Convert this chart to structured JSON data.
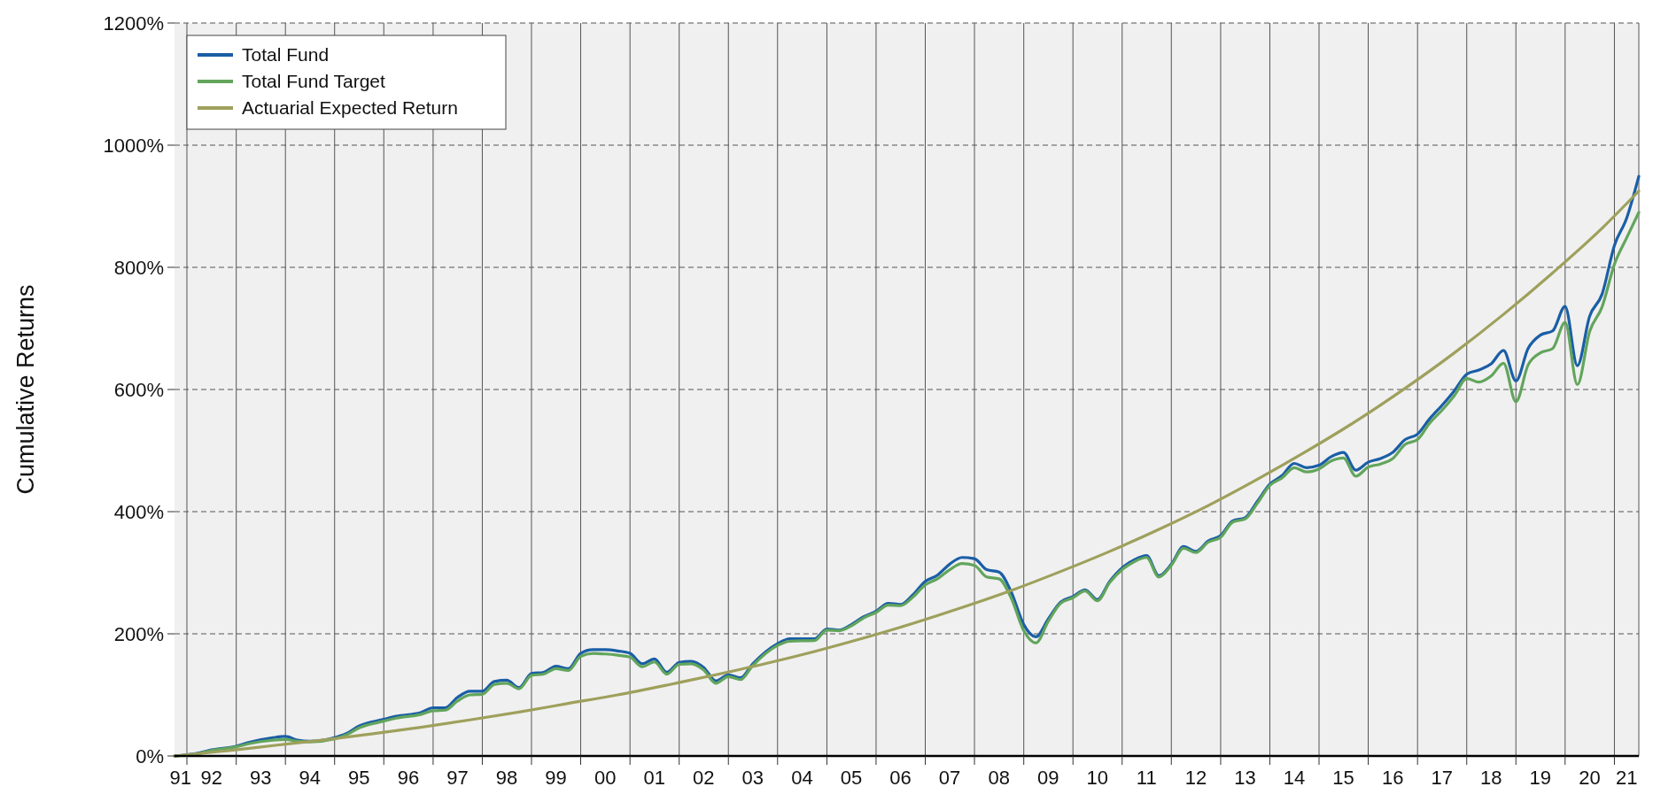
{
  "chart_data": {
    "type": "line",
    "ylabel": "Cumulative Returns",
    "xlim": [
      "1991-10-01",
      "2021-07-01"
    ],
    "xticks": [
      {
        "value": "1992-01-01",
        "label": null
      },
      {
        "value": "1993-01-01",
        "label": null
      },
      {
        "value": "1994-01-01",
        "label": null
      },
      {
        "value": "1995-01-01",
        "label": null
      },
      {
        "value": "1996-01-01",
        "label": null
      },
      {
        "value": "1997-01-01",
        "label": null
      },
      {
        "value": "1998-01-01",
        "label": null
      },
      {
        "value": "1999-01-01",
        "label": null
      },
      {
        "value": "2000-01-01",
        "label": null
      },
      {
        "value": "2001-01-01",
        "label": null
      },
      {
        "value": "2002-01-01",
        "label": null
      },
      {
        "value": "2003-01-01",
        "label": null
      },
      {
        "value": "2004-01-01",
        "label": null
      },
      {
        "value": "2005-01-01",
        "label": null
      },
      {
        "value": "2006-01-01",
        "label": null
      },
      {
        "value": "2007-01-01",
        "label": null
      },
      {
        "value": "2008-01-01",
        "label": null
      },
      {
        "value": "2009-01-01",
        "label": null
      },
      {
        "value": "2010-01-01",
        "label": null
      },
      {
        "value": "2011-01-01",
        "label": null
      },
      {
        "value": "2012-01-01",
        "label": null
      },
      {
        "value": "2013-01-01",
        "label": null
      },
      {
        "value": "2014-01-01",
        "label": null
      },
      {
        "value": "2015-01-01",
        "label": null
      },
      {
        "value": "2016-01-01",
        "label": null
      },
      {
        "value": "2017-01-01",
        "label": null
      },
      {
        "value": "2018-01-01",
        "label": null
      },
      {
        "value": "2019-01-01",
        "label": null
      },
      {
        "value": "2020-01-01",
        "label": null
      },
      {
        "value": "2021-01-01",
        "label": null
      },
      {
        "value": "1991-11-15",
        "label": "91"
      },
      {
        "value": "1992-07-01",
        "label": "92"
      },
      {
        "value": "1993-07-01",
        "label": "93"
      },
      {
        "value": "1994-07-01",
        "label": "94"
      },
      {
        "value": "1995-07-01",
        "label": "95"
      },
      {
        "value": "1996-07-01",
        "label": "96"
      },
      {
        "value": "1997-07-01",
        "label": "97"
      },
      {
        "value": "1998-07-01",
        "label": "98"
      },
      {
        "value": "1999-07-01",
        "label": "99"
      },
      {
        "value": "2000-07-01",
        "label": "00"
      },
      {
        "value": "2001-07-01",
        "label": "01"
      },
      {
        "value": "2002-07-01",
        "label": "02"
      },
      {
        "value": "2003-07-01",
        "label": "03"
      },
      {
        "value": "2004-07-01",
        "label": "04"
      },
      {
        "value": "2005-07-01",
        "label": "05"
      },
      {
        "value": "2006-07-01",
        "label": "06"
      },
      {
        "value": "2007-07-01",
        "label": "07"
      },
      {
        "value": "2008-07-01",
        "label": "08"
      },
      {
        "value": "2009-07-01",
        "label": "09"
      },
      {
        "value": "2010-07-01",
        "label": "10"
      },
      {
        "value": "2011-07-01",
        "label": "11"
      },
      {
        "value": "2012-07-01",
        "label": "12"
      },
      {
        "value": "2013-07-01",
        "label": "13"
      },
      {
        "value": "2014-07-01",
        "label": "14"
      },
      {
        "value": "2015-07-01",
        "label": "15"
      },
      {
        "value": "2016-07-01",
        "label": "16"
      },
      {
        "value": "2017-07-01",
        "label": "17"
      },
      {
        "value": "2018-07-01",
        "label": "18"
      },
      {
        "value": "2019-07-01",
        "label": "19"
      },
      {
        "value": "2020-07-01",
        "label": "20"
      },
      {
        "value": "2021-04-01",
        "label": "21"
      }
    ],
    "ylim": [
      0,
      1200
    ],
    "yticks": [
      {
        "value": 0,
        "label": "0%"
      },
      {
        "value": 200,
        "label": "200%"
      },
      {
        "value": 400,
        "label": "400%"
      },
      {
        "value": 600,
        "label": "600%"
      },
      {
        "value": 800,
        "label": "800%"
      },
      {
        "value": 1000,
        "label": "1000%"
      },
      {
        "value": 1200,
        "label": "1200%"
      }
    ],
    "grid": true,
    "legend": "top left",
    "marker": "none",
    "line_style": "solid",
    "series": [
      {
        "name": "Total Fund",
        "color": "#1a5ea6",
        "x": [
          "1991-10-01",
          "1992-04-01",
          "1992-07-01",
          "1993-01-01",
          "1993-04-01",
          "1993-10-01",
          "1994-01-01",
          "1994-04-01",
          "1994-07-01",
          "1995-01-01",
          "1995-04-01",
          "1995-07-01",
          "1996-01-01",
          "1996-04-01",
          "1996-10-01",
          "1997-01-01",
          "1997-04-01",
          "1997-07-01",
          "1997-10-01",
          "1998-01-01",
          "1998-04-01",
          "1998-07-01",
          "1998-10-01",
          "1999-01-01",
          "1999-04-01",
          "1999-07-01",
          "1999-10-01",
          "2000-01-01",
          "2000-04-01",
          "2000-07-01",
          "2000-10-01",
          "2001-01-01",
          "2001-04-01",
          "2001-07-01",
          "2001-10-01",
          "2002-01-01",
          "2002-04-01",
          "2002-07-01",
          "2002-10-01",
          "2003-01-01",
          "2003-04-01",
          "2003-07-01",
          "2004-01-01",
          "2004-04-01",
          "2004-10-01",
          "2005-01-01",
          "2005-04-01",
          "2005-07-01",
          "2005-10-01",
          "2006-01-01",
          "2006-04-01",
          "2006-07-01",
          "2006-10-01",
          "2007-01-01",
          "2007-04-01",
          "2007-07-01",
          "2007-10-01",
          "2008-01-01",
          "2008-04-01",
          "2008-07-01",
          "2008-10-01",
          "2009-01-01",
          "2009-04-01",
          "2009-07-01",
          "2009-10-01",
          "2010-01-01",
          "2010-04-01",
          "2010-07-01",
          "2010-10-01",
          "2011-01-01",
          "2011-04-01",
          "2011-07-01",
          "2011-10-01",
          "2012-01-01",
          "2012-04-01",
          "2012-07-01",
          "2012-10-01",
          "2013-01-01",
          "2013-04-01",
          "2013-07-01",
          "2013-10-01",
          "2014-01-01",
          "2014-04-01",
          "2014-07-01",
          "2014-10-01",
          "2015-01-01",
          "2015-04-01",
          "2015-07-01",
          "2015-10-01",
          "2016-01-01",
          "2016-04-01",
          "2016-07-01",
          "2016-10-01",
          "2017-01-01",
          "2017-04-01",
          "2017-07-01",
          "2017-10-01",
          "2018-01-01",
          "2018-04-01",
          "2018-07-01",
          "2018-10-01",
          "2019-01-01",
          "2019-04-01",
          "2019-07-01",
          "2019-10-01",
          "2020-01-01",
          "2020-04-01",
          "2020-07-01",
          "2020-10-01",
          "2021-01-01",
          "2021-04-01",
          "2021-07-01"
        ],
        "values": [
          0,
          5,
          10,
          16,
          22,
          30,
          32,
          26,
          24,
          30,
          37,
          49,
          60,
          65,
          71,
          79,
          79,
          96,
          106,
          106,
          122,
          124,
          112,
          135,
          137,
          147,
          143,
          168,
          174,
          174,
          172,
          168,
          151,
          159,
          137,
          153,
          155,
          145,
          123,
          133,
          128,
          151,
          184,
          192,
          192,
          208,
          206,
          215,
          228,
          237,
          250,
          248,
          264,
          286,
          296,
          314,
          325,
          323,
          305,
          301,
          268,
          215,
          195,
          224,
          252,
          261,
          272,
          256,
          286,
          308,
          321,
          328,
          295,
          314,
          343,
          335,
          352,
          361,
          385,
          390,
          417,
          445,
          459,
          479,
          472,
          476,
          490,
          497,
          468,
          481,
          487,
          497,
          518,
          527,
          552,
          574,
          598,
          625,
          632,
          642,
          664,
          614,
          667,
          689,
          696,
          736,
          639,
          720,
          756,
          836,
          880,
          949
        ]
      },
      {
        "name": "Total Fund Target",
        "color": "#62a55c",
        "x": [
          "1991-10-01",
          "1992-04-01",
          "1992-07-01",
          "1993-01-01",
          "1993-04-01",
          "1993-10-01",
          "1994-01-01",
          "1994-04-01",
          "1994-07-01",
          "1995-01-01",
          "1995-04-01",
          "1995-07-01",
          "1996-01-01",
          "1996-04-01",
          "1996-10-01",
          "1997-01-01",
          "1997-04-01",
          "1997-07-01",
          "1997-10-01",
          "1998-01-01",
          "1998-04-01",
          "1998-07-01",
          "1998-10-01",
          "1999-01-01",
          "1999-04-01",
          "1999-07-01",
          "1999-10-01",
          "2000-01-01",
          "2000-04-01",
          "2000-07-01",
          "2000-10-01",
          "2001-01-01",
          "2001-04-01",
          "2001-07-01",
          "2001-10-01",
          "2002-01-01",
          "2002-04-01",
          "2002-07-01",
          "2002-10-01",
          "2003-01-01",
          "2003-04-01",
          "2003-07-01",
          "2004-01-01",
          "2004-04-01",
          "2004-10-01",
          "2005-01-01",
          "2005-04-01",
          "2005-07-01",
          "2005-10-01",
          "2006-01-01",
          "2006-04-01",
          "2006-07-01",
          "2006-10-01",
          "2007-01-01",
          "2007-04-01",
          "2007-07-01",
          "2007-10-01",
          "2008-01-01",
          "2008-04-01",
          "2008-07-01",
          "2008-10-01",
          "2009-01-01",
          "2009-04-01",
          "2009-07-01",
          "2009-10-01",
          "2010-01-01",
          "2010-04-01",
          "2010-07-01",
          "2010-10-01",
          "2011-01-01",
          "2011-04-01",
          "2011-07-01",
          "2011-10-01",
          "2012-01-01",
          "2012-04-01",
          "2012-07-01",
          "2012-10-01",
          "2013-01-01",
          "2013-04-01",
          "2013-07-01",
          "2013-10-01",
          "2014-01-01",
          "2014-04-01",
          "2014-07-01",
          "2014-10-01",
          "2015-01-01",
          "2015-04-01",
          "2015-07-01",
          "2015-10-01",
          "2016-01-01",
          "2016-04-01",
          "2016-07-01",
          "2016-10-01",
          "2017-01-01",
          "2017-04-01",
          "2017-07-01",
          "2017-10-01",
          "2018-01-01",
          "2018-04-01",
          "2018-07-01",
          "2018-10-01",
          "2019-01-01",
          "2019-04-01",
          "2019-07-01",
          "2019-10-01",
          "2020-01-01",
          "2020-04-01",
          "2020-07-01",
          "2020-10-01",
          "2021-01-01",
          "2021-04-01",
          "2021-07-01"
        ],
        "values": [
          0,
          4,
          9,
          15,
          20,
          26,
          27,
          24,
          23,
          28,
          35,
          46,
          57,
          62,
          68,
          74,
          75,
          90,
          100,
          101,
          117,
          119,
          110,
          132,
          134,
          143,
          140,
          163,
          168,
          167,
          165,
          162,
          146,
          154,
          134,
          150,
          151,
          141,
          119,
          130,
          125,
          148,
          181,
          188,
          189,
          206,
          205,
          213,
          226,
          235,
          247,
          246,
          260,
          280,
          290,
          305,
          315,
          312,
          293,
          290,
          258,
          205,
          185,
          220,
          250,
          259,
          270,
          254,
          284,
          305,
          318,
          325,
          293,
          312,
          340,
          333,
          350,
          358,
          383,
          388,
          414,
          443,
          455,
          472,
          465,
          470,
          483,
          488,
          458,
          473,
          478,
          487,
          510,
          518,
          545,
          566,
          590,
          618,
          612,
          622,
          643,
          580,
          640,
          660,
          667,
          710,
          608,
          695,
          735,
          805,
          848,
          890
        ]
      },
      {
        "name": "Actuarial Expected Return",
        "color": "#9ea05c",
        "x": [
          "1991-10-01",
          "1992-10-01",
          "1993-10-01",
          "1994-10-01",
          "1995-10-01",
          "1996-10-01",
          "1997-10-01",
          "1998-10-01",
          "1999-10-01",
          "2000-10-01",
          "2001-10-01",
          "2002-10-01",
          "2003-10-01",
          "2004-10-01",
          "2005-10-01",
          "2006-10-01",
          "2007-10-01",
          "2008-10-01",
          "2009-10-01",
          "2010-10-01",
          "2011-10-01",
          "2012-10-01",
          "2013-10-01",
          "2014-10-01",
          "2015-10-01",
          "2016-10-01",
          "2017-10-01",
          "2018-10-01",
          "2019-10-01",
          "2020-10-01",
          "2021-07-01"
        ],
        "values": [
          0,
          8,
          17,
          26,
          36,
          47,
          59,
          72,
          86,
          100,
          116,
          133,
          151,
          171,
          193,
          217,
          243,
          271,
          302,
          335,
          371,
          410,
          453,
          499,
          548,
          602,
          660,
          723,
          791,
          864,
          925
        ]
      }
    ]
  }
}
